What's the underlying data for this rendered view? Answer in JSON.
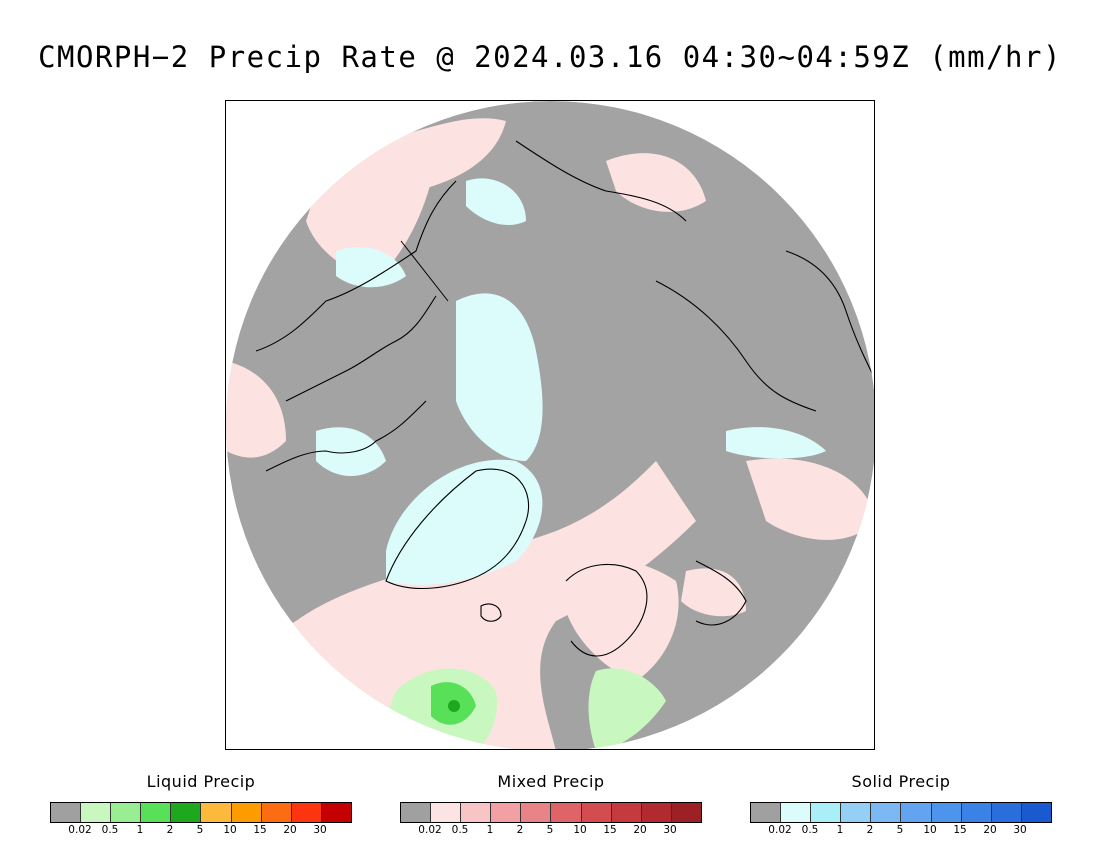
{
  "title": "CMORPH−2 Precip Rate @ 2024.03.16 04:30~04:59Z (mm/hr)",
  "map": {
    "projection": "north-polar-stereographic",
    "background_no_precip_color": "#a3a3a3"
  },
  "legends": [
    {
      "id": "liquid",
      "title": "Liquid Precip",
      "colors": [
        "#a0a0a0",
        "#c8f8c0",
        "#98ee90",
        "#58e058",
        "#1ea81e",
        "#fcba3c",
        "#fc9c00",
        "#fc6c10",
        "#fc3410",
        "#c40000"
      ],
      "ticks": [
        "0.02",
        "0.5",
        "1",
        "2",
        "5",
        "10",
        "15",
        "20",
        "30"
      ]
    },
    {
      "id": "mixed",
      "title": "Mixed Precip",
      "colors": [
        "#a0a0a0",
        "#fde4e4",
        "#f9c4c6",
        "#f2a0a4",
        "#e88488",
        "#de6468",
        "#d24c50",
        "#c43a3e",
        "#b02a30",
        "#9c2024"
      ],
      "ticks": [
        "0.02",
        "0.5",
        "1",
        "2",
        "5",
        "10",
        "15",
        "20",
        "30"
      ]
    },
    {
      "id": "solid",
      "title": "Solid Precip",
      "colors": [
        "#a0a0a0",
        "#dcfcfc",
        "#aaeef8",
        "#94d0f6",
        "#7cb8f4",
        "#62a4f0",
        "#4c94ec",
        "#3a82e6",
        "#2a6edc",
        "#1a5ad0"
      ],
      "ticks": [
        "0.02",
        "0.5",
        "1",
        "2",
        "5",
        "10",
        "15",
        "20",
        "30"
      ]
    }
  ]
}
